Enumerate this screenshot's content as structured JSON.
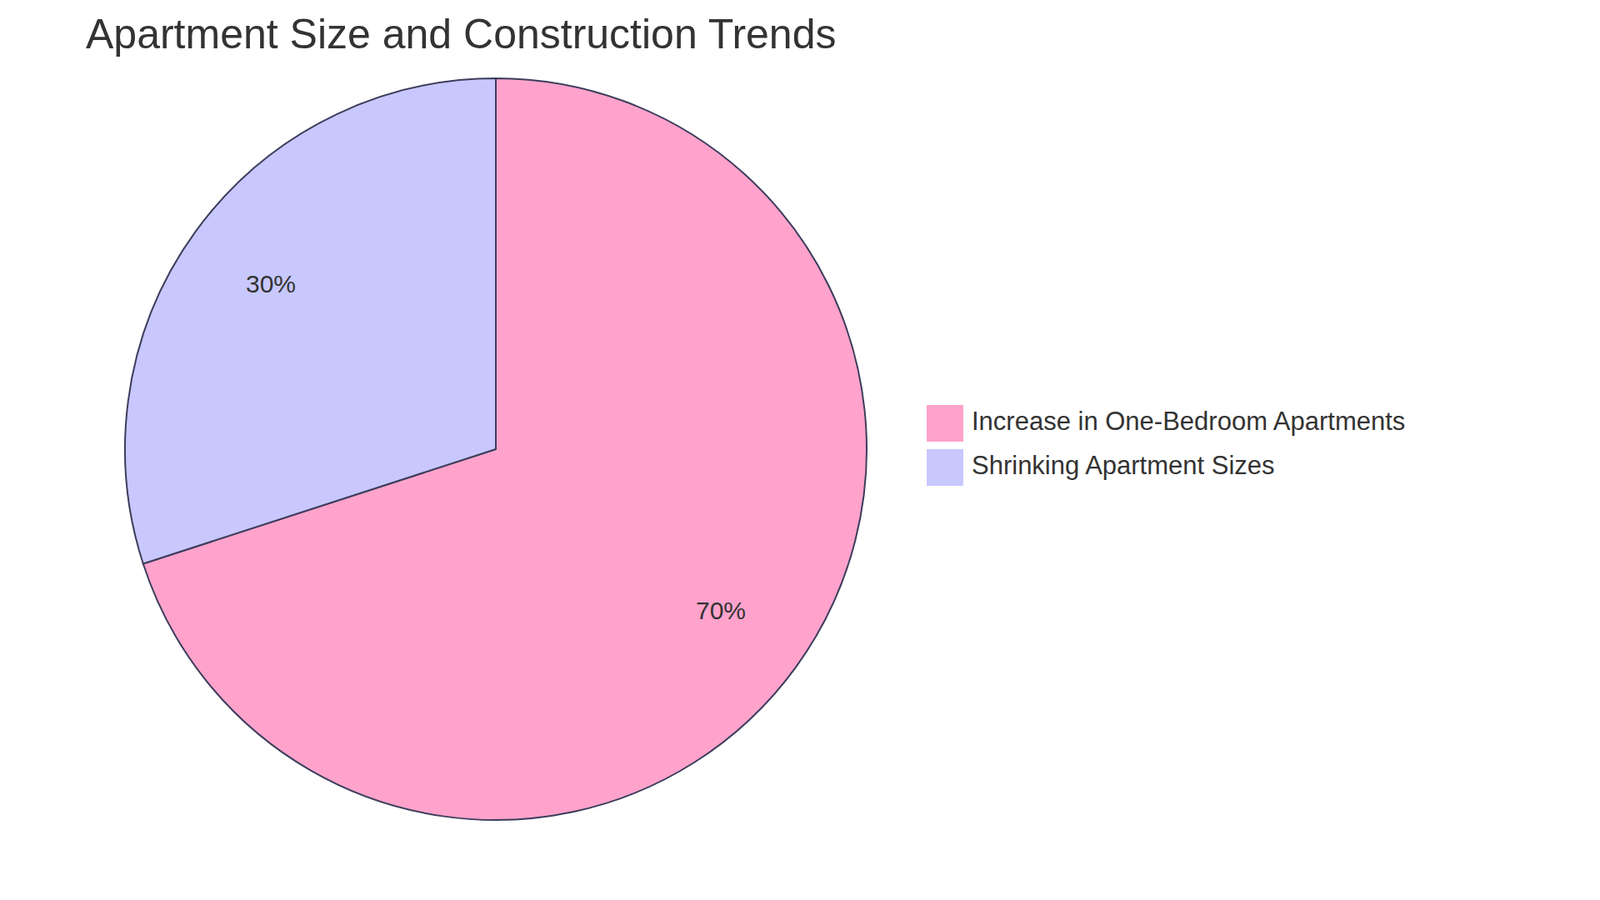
{
  "chart_data": {
    "type": "pie",
    "title": "Apartment Size and Construction Trends",
    "categories": [
      "Increase in One-Bedroom Apartments",
      "Shrinking Apartment Sizes"
    ],
    "values": [
      70,
      30
    ],
    "value_labels": [
      "70%",
      "30%"
    ],
    "colors": [
      "#ffa3cc",
      "#c8c8ff"
    ],
    "data_labels": true,
    "legend": "right"
  }
}
